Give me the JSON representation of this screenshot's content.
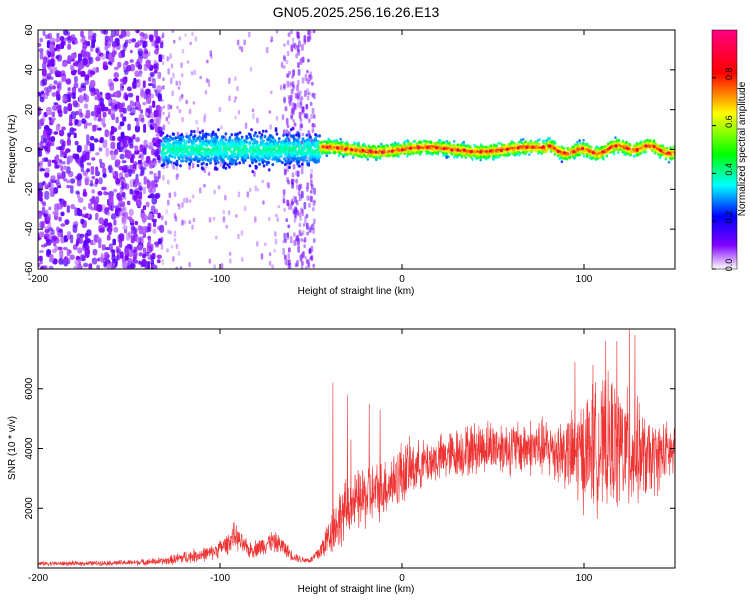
{
  "figure_title": "GN05.2025.256.16.26.E13",
  "chart_data": [
    {
      "type": "heatmap",
      "title": "GN05.2025.256.16.26.E13",
      "xlabel": "Height of straight line (km)",
      "ylabel": "Frequency (Hz)",
      "xlim": [
        -200,
        150
      ],
      "ylim": [
        -60,
        60
      ],
      "x_ticks": [
        -200,
        -100,
        0,
        100
      ],
      "y_ticks": [
        60,
        40,
        20,
        0,
        -20,
        -40,
        -60
      ],
      "colorbar": {
        "label": "Normalized spectral amplitude",
        "range": [
          0.0,
          1.0
        ],
        "ticks": [
          0.0,
          0.2,
          0.4,
          0.6,
          0.8
        ],
        "stops": [
          "#ffffff",
          "#8000ff",
          "#0000ff",
          "#00ffff",
          "#00ff00",
          "#ffff00",
          "#ff0000",
          "#ff0080"
        ]
      },
      "regions": [
        {
          "x_range": [
            -200,
            -132
          ],
          "f_range": [
            -60,
            60
          ],
          "pattern": "dense scattered noise",
          "amp_range": [
            0.05,
            0.15
          ]
        },
        {
          "x_range": [
            -132,
            -50
          ],
          "f_range": [
            -60,
            60
          ],
          "pattern": "sparse faint noise",
          "amp_range": [
            0.02,
            0.08
          ]
        },
        {
          "x_range": [
            -65,
            -48
          ],
          "f_range": [
            -60,
            60
          ],
          "pattern": "vertical noise band",
          "amp_range": [
            0.03,
            0.1
          ]
        },
        {
          "x_range": [
            -132,
            -45
          ],
          "f_center": 0,
          "f_halfwidth": 12,
          "pattern": "broad signal band",
          "amp_range": [
            0.1,
            0.35
          ]
        },
        {
          "x_range": [
            -45,
            150
          ],
          "f_center": 0,
          "f_halfwidth": 5,
          "pattern": "narrow strong signal band",
          "amp_range": [
            0.3,
            1.0
          ]
        }
      ]
    },
    {
      "type": "line",
      "xlabel": "Height of straight line (km)",
      "ylabel": "SNR (10 * v/v)",
      "xlim": [
        -200,
        150
      ],
      "ylim": [
        0,
        8000
      ],
      "x_ticks": [
        -200,
        -100,
        0,
        100
      ],
      "y_ticks": [
        2000,
        4000,
        6000
      ],
      "color": "#ee3333",
      "envelope": {
        "x": [
          -200,
          -180,
          -150,
          -130,
          -120,
          -105,
          -96,
          -92,
          -88,
          -84,
          -78,
          -72,
          -66,
          -60,
          -55,
          -50,
          -45,
          -40,
          -35,
          -30,
          -25,
          -20,
          -15,
          -10,
          -5,
          0,
          10,
          20,
          30,
          40,
          50,
          60,
          70,
          80,
          90,
          95,
          100,
          105,
          110,
          115,
          120,
          125,
          130,
          135,
          140,
          145,
          150
        ],
        "mean": [
          150,
          150,
          180,
          230,
          350,
          500,
          800,
          1100,
          800,
          600,
          700,
          900,
          750,
          400,
          280,
          260,
          550,
          1100,
          1600,
          2000,
          2200,
          2400,
          2500,
          2700,
          2900,
          3200,
          3450,
          3650,
          3850,
          4000,
          4100,
          4000,
          4050,
          4000,
          3900,
          3700,
          3900,
          4100,
          4000,
          4200,
          4100,
          3800,
          3900,
          3600,
          3700,
          3900,
          3800
        ],
        "spread": [
          70,
          70,
          80,
          120,
          200,
          220,
          300,
          400,
          300,
          250,
          280,
          320,
          280,
          150,
          100,
          100,
          300,
          600,
          900,
          900,
          900,
          1000,
          900,
          900,
          900,
          1000,
          700,
          700,
          750,
          800,
          800,
          800,
          850,
          900,
          1100,
          1400,
          1700,
          1900,
          1900,
          2000,
          2000,
          1800,
          1500,
          1200,
          1100,
          900,
          900
        ]
      },
      "spikes": [
        {
          "x": -38,
          "y": 6200
        },
        {
          "x": -30,
          "y": 5800
        },
        {
          "x": -28,
          "y": 4300
        },
        {
          "x": -18,
          "y": 5500
        },
        {
          "x": -12,
          "y": 5300
        },
        {
          "x": 95,
          "y": 6900
        },
        {
          "x": 105,
          "y": 6800
        },
        {
          "x": 112,
          "y": 7600
        },
        {
          "x": 118,
          "y": 7600
        },
        {
          "x": 125,
          "y": 8000
        },
        {
          "x": 128,
          "y": 7800
        }
      ]
    }
  ]
}
